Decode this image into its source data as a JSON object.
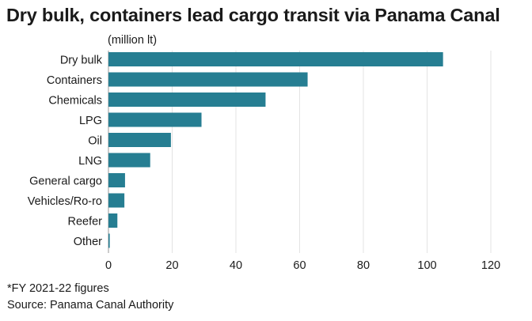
{
  "chart_data": {
    "type": "bar",
    "orientation": "horizontal",
    "title": "Dry bulk, containers lead cargo transit via Panama Canal",
    "unit_label": "(million lt)",
    "categories": [
      "Dry bulk",
      "Containers",
      "Chemicals",
      "LPG",
      "Oil",
      "LNG",
      "General cargo",
      "Vehicles/Ro-ro",
      "Reefer",
      "Other"
    ],
    "values": [
      105,
      62.5,
      49.3,
      29.2,
      19.6,
      13.1,
      5.2,
      5.0,
      2.8,
      0.4
    ],
    "xlim": [
      0,
      120
    ],
    "xticks": [
      0,
      20,
      40,
      60,
      80,
      100,
      120
    ],
    "grid": "vertical",
    "bar_color": "#267e92"
  },
  "footnotes": {
    "note": "*FY 2021-22 figures",
    "source": "Source: Panama Canal Authority"
  }
}
